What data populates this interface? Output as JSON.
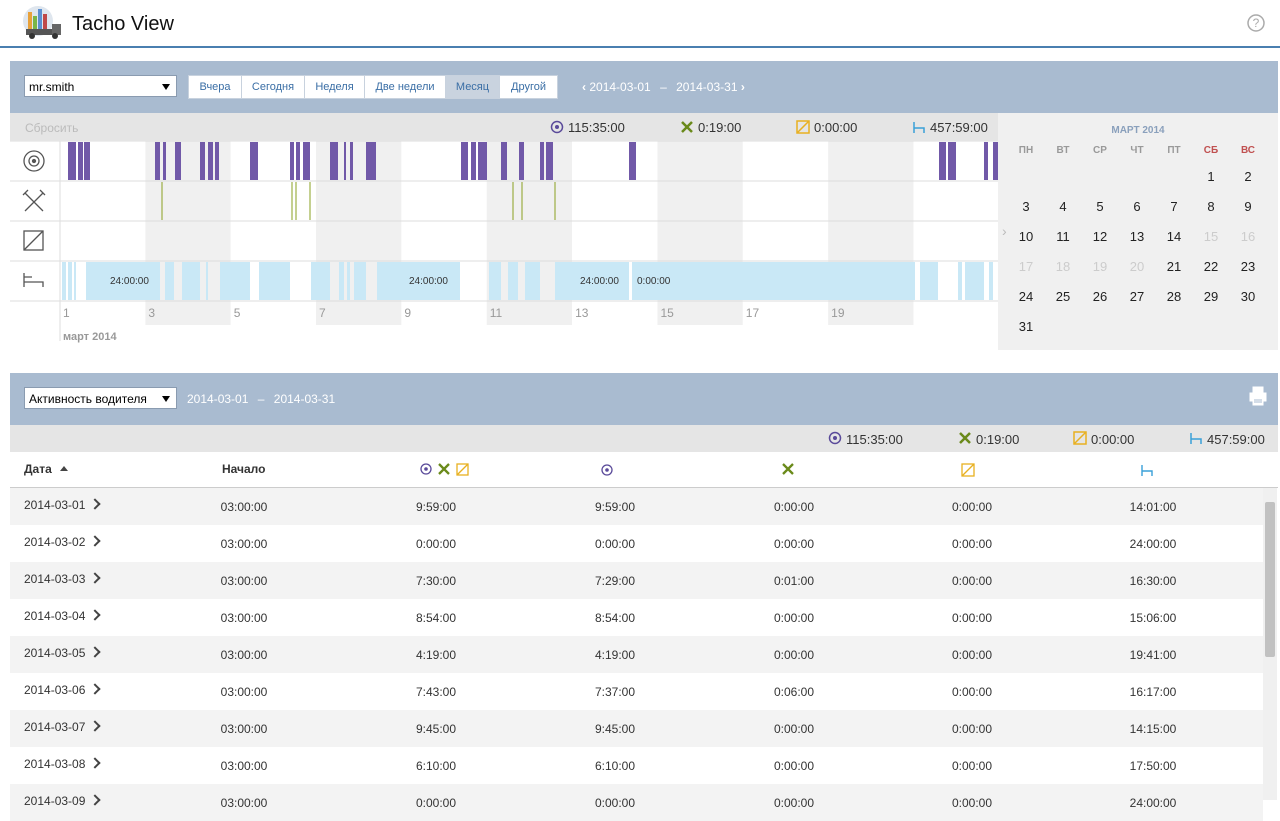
{
  "header": {
    "title": "Tacho View"
  },
  "toolbar": {
    "driver": "mr.smith",
    "periods": [
      "Вчера",
      "Сегодня",
      "Неделя",
      "Две недели",
      "Месяц",
      "Другой"
    ],
    "range": {
      "from": "2014-03-01",
      "separator": "–",
      "to": "2014-03-31"
    }
  },
  "summary": {
    "reset": "Сбросить",
    "driving": "115:35:00",
    "work": "0:19:00",
    "availability": "0:00:00",
    "rest": "457:59:00"
  },
  "timeline": {
    "axis_labels": [
      "1",
      "3",
      "5",
      "7",
      "9",
      "11",
      "13",
      "15",
      "17",
      "19"
    ],
    "month": "март 2014",
    "rest_labels": [
      "24:00:00",
      "24:00:00",
      "24:00:00",
      "0:00:00"
    ]
  },
  "calendar": {
    "title": "МАРТ 2014",
    "weekdays": [
      "ПН",
      "ВТ",
      "СР",
      "ЧТ",
      "ПТ",
      "СБ",
      "ВС"
    ],
    "weeks": [
      [
        null,
        null,
        null,
        null,
        null,
        1,
        2
      ],
      [
        3,
        4,
        5,
        6,
        7,
        8,
        9
      ],
      [
        10,
        11,
        12,
        13,
        14,
        15,
        16
      ],
      [
        17,
        18,
        19,
        20,
        21,
        22,
        23
      ],
      [
        24,
        25,
        26,
        27,
        28,
        29,
        30
      ],
      [
        31,
        null,
        null,
        null,
        null,
        null,
        null
      ]
    ]
  },
  "report": {
    "type": "Активность водителя",
    "range": {
      "from": "2014-03-01",
      "separator": "–",
      "to": "2014-03-31"
    }
  },
  "table": {
    "columns": {
      "date": "Дата",
      "start": "Начало"
    },
    "rows": [
      [
        "2014-03-01",
        "03:00:00",
        "9:59:00",
        "9:59:00",
        "0:00:00",
        "0:00:00",
        "14:01:00"
      ],
      [
        "2014-03-02",
        "03:00:00",
        "0:00:00",
        "0:00:00",
        "0:00:00",
        "0:00:00",
        "24:00:00"
      ],
      [
        "2014-03-03",
        "03:00:00",
        "7:30:00",
        "7:29:00",
        "0:01:00",
        "0:00:00",
        "16:30:00"
      ],
      [
        "2014-03-04",
        "03:00:00",
        "8:54:00",
        "8:54:00",
        "0:00:00",
        "0:00:00",
        "15:06:00"
      ],
      [
        "2014-03-05",
        "03:00:00",
        "4:19:00",
        "4:19:00",
        "0:00:00",
        "0:00:00",
        "19:41:00"
      ],
      [
        "2014-03-06",
        "03:00:00",
        "7:43:00",
        "7:37:00",
        "0:06:00",
        "0:00:00",
        "16:17:00"
      ],
      [
        "2014-03-07",
        "03:00:00",
        "9:45:00",
        "9:45:00",
        "0:00:00",
        "0:00:00",
        "14:15:00"
      ],
      [
        "2014-03-08",
        "03:00:00",
        "6:10:00",
        "6:10:00",
        "0:00:00",
        "0:00:00",
        "17:50:00"
      ],
      [
        "2014-03-09",
        "03:00:00",
        "0:00:00",
        "0:00:00",
        "0:00:00",
        "0:00:00",
        "24:00:00"
      ]
    ]
  }
}
